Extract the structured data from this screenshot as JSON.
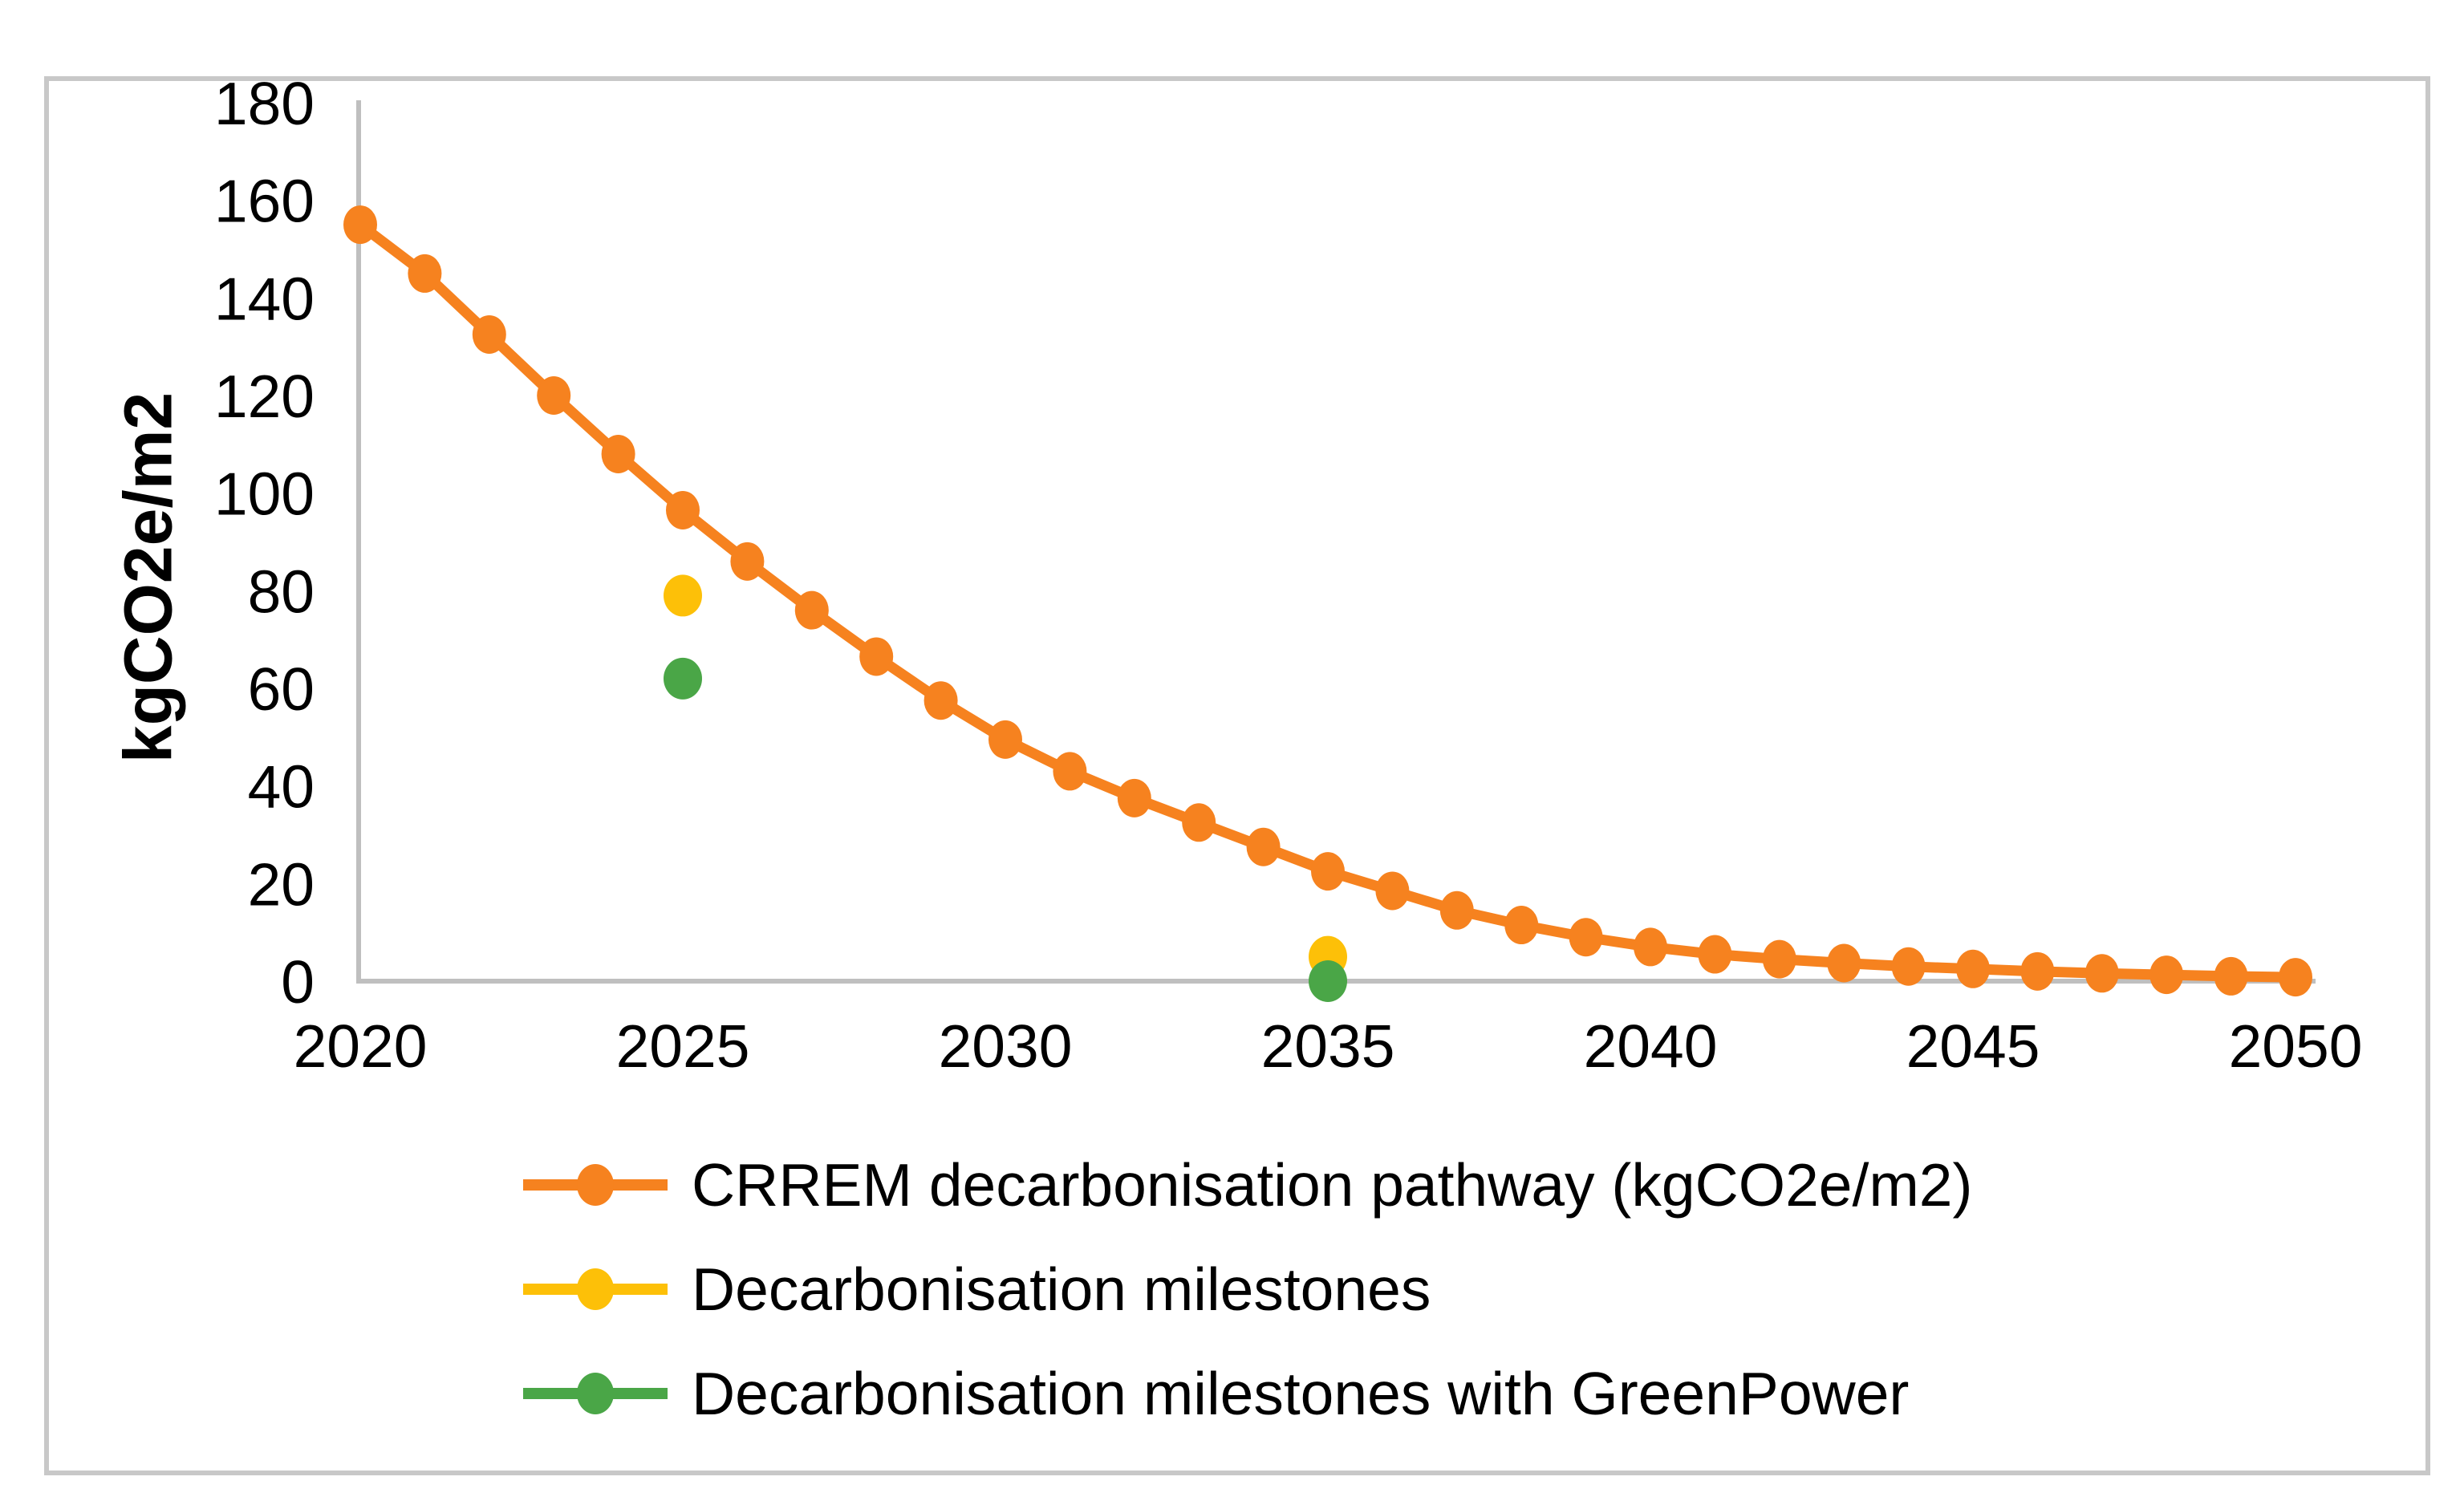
{
  "figure": {
    "background": "#ffffff",
    "frame_color": "#c8c8c8"
  },
  "chart_data": {
    "type": "line",
    "title": "",
    "xlabel": "",
    "ylabel": "kgCO2e/m2",
    "ylim": [
      0,
      180
    ],
    "ytick_step": 20,
    "xlim": [
      2020,
      2050
    ],
    "xticks": [
      2020,
      2025,
      2030,
      2035,
      2040,
      2045,
      2050
    ],
    "grid": false,
    "legend_position": "bottom-left",
    "axis_color": "#bfbfbf",
    "text_color": "#000000",
    "x": [
      2020,
      2021,
      2022,
      2023,
      2024,
      2025,
      2026,
      2027,
      2028,
      2029,
      2030,
      2031,
      2032,
      2033,
      2034,
      2035,
      2036,
      2037,
      2038,
      2039,
      2040,
      2041,
      2042,
      2043,
      2044,
      2045,
      2046,
      2047,
      2048,
      2049,
      2050
    ],
    "series": [
      {
        "name": "CRREM decarbonisation pathway (kgCO2e/m2)",
        "type": "line+marker",
        "color": "#f6821f",
        "values": [
          155,
          145,
          132.5,
          120,
          108,
          96.5,
          86,
          76,
          66.5,
          57.5,
          49.5,
          43,
          37.5,
          32.5,
          27.5,
          22.5,
          18.5,
          14.5,
          11.5,
          9,
          7,
          5.5,
          4.5,
          3.7,
          3,
          2.5,
          2,
          1.6,
          1.3,
          1,
          0.8
        ]
      },
      {
        "name": "Decarbonisation milestones",
        "type": "scatter",
        "color": "#fdc008",
        "points": [
          {
            "x": 2025,
            "y": 79
          },
          {
            "x": 2035,
            "y": 5
          }
        ]
      },
      {
        "name": "Decarbonisation milestones with GreenPower",
        "type": "scatter",
        "color": "#4aa647",
        "points": [
          {
            "x": 2025,
            "y": 62
          },
          {
            "x": 2035,
            "y": 0
          }
        ]
      }
    ]
  }
}
